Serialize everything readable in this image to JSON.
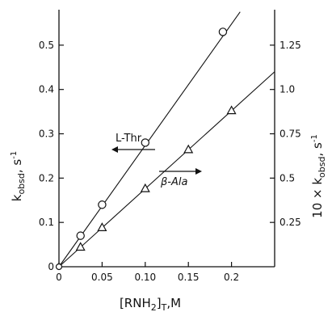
{
  "chart_data": {
    "type": "scatter",
    "xlabel": "[RNH2]T, M",
    "ylabel_left": "kobsd, s-1",
    "ylabel_right": "10 × kobsd, s-1",
    "x_ticks": [
      0,
      0.05,
      0.1,
      0.15,
      0.2
    ],
    "x_tick_labels": [
      "0",
      "0.05",
      "0.10",
      "0.15",
      "0.2"
    ],
    "xlim": [
      0,
      0.25
    ],
    "ylim_left": [
      0,
      0.58
    ],
    "y_left_ticks": [
      0.1,
      0.2,
      0.3,
      0.4,
      0.5
    ],
    "y_left_tick_labels": [
      "0.1",
      "0.2",
      "0.3",
      "0.4",
      "0.5"
    ],
    "ylim_right": [
      0,
      1.45
    ],
    "y_right_ticks": [
      0.25,
      0.5,
      0.75,
      1.0,
      1.25
    ],
    "y_right_tick_labels": [
      "0.25",
      "0.5",
      "0.75",
      "1.0",
      "1.25"
    ],
    "series": [
      {
        "name": "L-Thr",
        "marker": "circle",
        "axis": "left",
        "x": [
          0.025,
          0.05,
          0.1,
          0.19
        ],
        "y": [
          0.07,
          0.14,
          0.28,
          0.53
        ],
        "fit_line": [
          [
            0,
            0
          ],
          [
            0.21,
            0.575
          ]
        ]
      },
      {
        "name": "β-Ala",
        "marker": "triangle",
        "axis": "right",
        "x": [
          0.025,
          0.05,
          0.1,
          0.15,
          0.2
        ],
        "y": [
          0.11,
          0.22,
          0.44,
          0.66,
          0.88
        ],
        "fit_line": [
          [
            0,
            0
          ],
          [
            0.25,
            1.1
          ]
        ]
      }
    ],
    "annotations": [
      {
        "text": "L-Thr",
        "arrow": "left"
      },
      {
        "text": "β-Ala",
        "arrow": "right"
      }
    ]
  },
  "axis_titles": {
    "y_left_main": "k",
    "y_left_sub": "obsd",
    "y_left_unit": ", s",
    "y_left_sup": "-1",
    "y_right_main": "10 × k",
    "y_right_sub": "obsd",
    "y_right_unit": ", s",
    "y_right_sup": "-1",
    "x_main": "[RNH",
    "x_sub1": "2",
    "x_bracket": "]",
    "x_sub2": "T",
    "x_unit": ",M"
  }
}
